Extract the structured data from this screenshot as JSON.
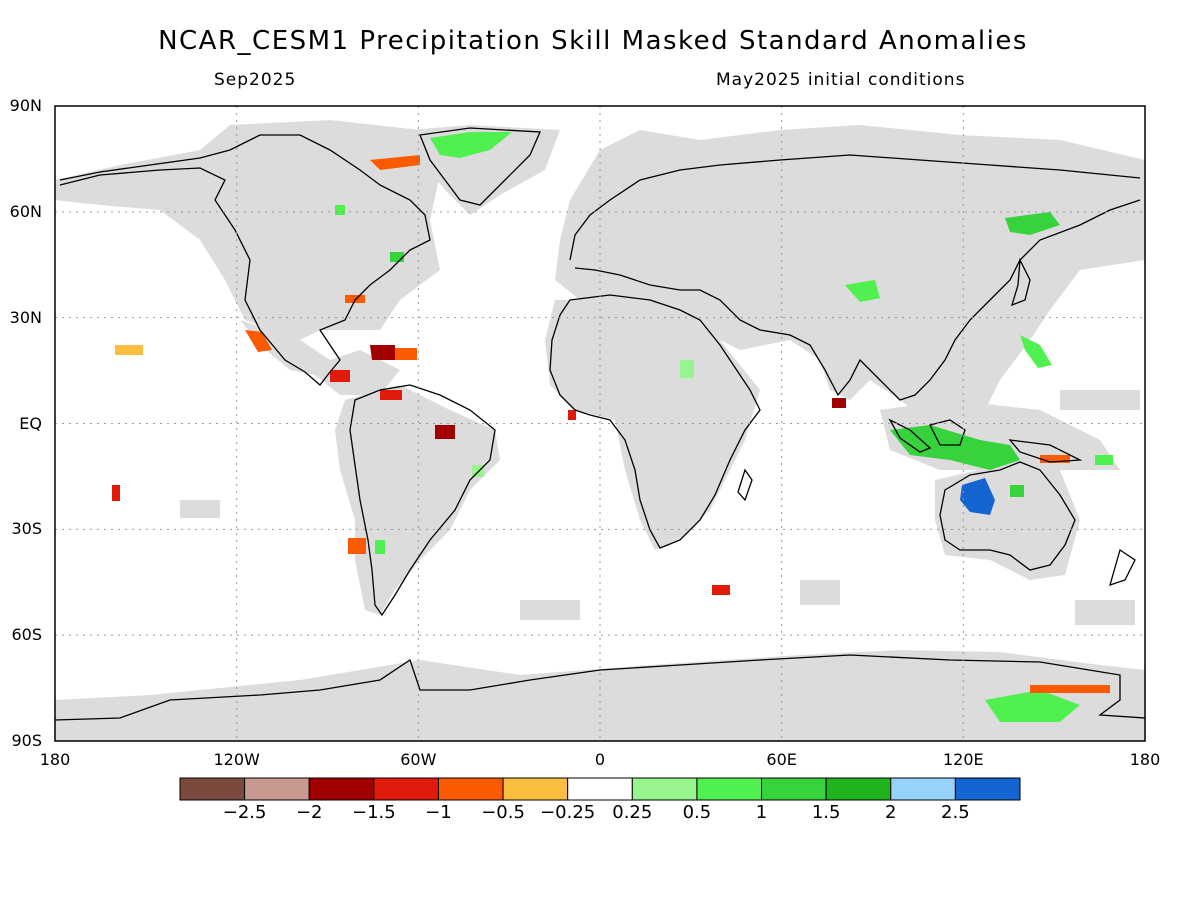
{
  "title": "NCAR_CESM1 Precipitation Skill Masked Standard Anomalies",
  "subtitle_left": "Sep2025",
  "subtitle_right": "May2025 initial conditions",
  "lat_labels": [
    "90N",
    "60N",
    "30N",
    "EQ",
    "30S",
    "60S",
    "90S"
  ],
  "lon_labels": [
    "180",
    "120W",
    "60W",
    "0",
    "60E",
    "120E",
    "180"
  ],
  "colorbar": {
    "colors": [
      "#7b4a3f",
      "#c89a8f",
      "#a00000",
      "#e01b0b",
      "#fb5a00",
      "#fbbe3e",
      "#ffffff",
      "#98f48c",
      "#50f050",
      "#37d23c",
      "#1fb41e",
      "#96d2fa",
      "#1464d2"
    ],
    "labels": [
      "-2.5",
      "-2",
      "-1.5",
      "-1",
      "-0.5",
      "-0.25",
      "0.25",
      "0.5",
      "1",
      "1.5",
      "2",
      "2.5"
    ]
  },
  "colors": {
    "land_mask": "#dcdcdc",
    "ocean": "#ffffff",
    "coast": "#000000",
    "grid": "#999999"
  }
}
